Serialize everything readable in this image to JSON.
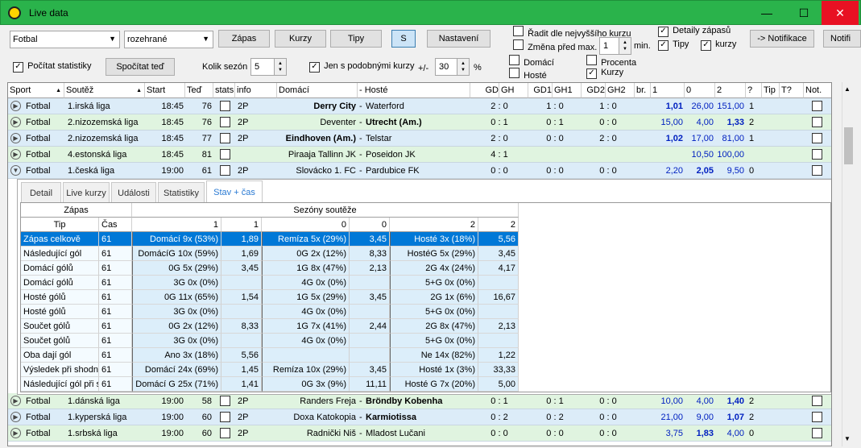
{
  "window": {
    "title": "Live data",
    "minimize": "—",
    "maximize": "☐",
    "close": "✕"
  },
  "toolbar": {
    "sport_combo": "Fotbal",
    "filter_combo": "rozehrané",
    "btn_zapas": "Zápas",
    "btn_kurzy": "Kurzy",
    "btn_tipy": "Tipy",
    "btn_s": "S",
    "btn_nastaveni": "Nastavení",
    "radit_label": "Řadit dle nejvyššího kurzu",
    "zmena_label": "Změna před max.",
    "zmena_value": "1",
    "min_label": "min.",
    "detaily_label": "Detaily zápasů",
    "tipy_label": "Tipy",
    "kurzy_label": "kurzy",
    "notifikace_btn": "-> Notifikace",
    "notifi_btn": "Notifi",
    "pocitat_label": "Počítat statistiky",
    "spocitat_btn": "Spočítat teď",
    "kolik_label": "Kolik sezón",
    "kolik_value": "5",
    "jen_label": "Jen s podobnými kurzy",
    "plusminus_label": "+/-",
    "pct_value": "30",
    "pct_label": "%",
    "domaci_label": "Domácí",
    "hoste_label": "Hosté",
    "procenta_label": "Procenta",
    "kurzy2_label": "Kurzy"
  },
  "columns": [
    "Sport",
    "Soutěž",
    "Start",
    "Teď",
    "stats",
    "info",
    "Domácí",
    "- Hosté",
    "GD",
    "GH",
    "GD1",
    "GH1",
    "GD2",
    "GH2",
    "br.",
    "1",
    "0",
    "2",
    "?",
    "Tip",
    "T?",
    "Not."
  ],
  "rows_top": [
    {
      "sport": "Fotbal",
      "league": "1.irská liga",
      "start": "18:45",
      "now": "76",
      "info": "2P",
      "home": "Derry City",
      "away": "Waterford",
      "gd": "2 : 0",
      "gd1": "1 : 0",
      "gd2": "1 : 0",
      "o1": "1,01",
      "o0": "26,00",
      "o2": "151,00",
      "q": "1",
      "home_bold": true,
      "away_bold": false,
      "hl": "o1",
      "expanded": false,
      "bg": "#dcecf8"
    },
    {
      "sport": "Fotbal",
      "league": "2.nizozemská liga",
      "start": "18:45",
      "now": "76",
      "info": "2P",
      "home": "Deventer",
      "away": "Utrecht (Am.)",
      "gd": "0 : 1",
      "gd1": "0 : 1",
      "gd2": "0 : 0",
      "o1": "15,00",
      "o0": "4,00",
      "o2": "1,33",
      "q": "2",
      "home_bold": false,
      "away_bold": true,
      "hl": "o2",
      "expanded": false,
      "bg": "#e0f4e0"
    },
    {
      "sport": "Fotbal",
      "league": "2.nizozemská liga",
      "start": "18:45",
      "now": "77",
      "info": "2P",
      "home": "Eindhoven (Am.)",
      "away": "Telstar",
      "gd": "2 : 0",
      "gd1": "0 : 0",
      "gd2": "2 : 0",
      "o1": "1,02",
      "o0": "17,00",
      "o2": "81,00",
      "q": "1",
      "home_bold": true,
      "away_bold": false,
      "hl": "o1",
      "expanded": false,
      "bg": "#dcecf8"
    },
    {
      "sport": "Fotbal",
      "league": "4.estonská liga",
      "start": "18:45",
      "now": "81",
      "info": "",
      "home": "Piraaja Tallinn JK",
      "away": "Poseidon JK",
      "gd": "4 : 1",
      "gd1": "",
      "gd2": "",
      "o1": "",
      "o0": "10,50",
      "o2": "100,00",
      "q": "",
      "home_bold": false,
      "away_bold": false,
      "hl": "",
      "expanded": false,
      "bg": "#e0f4e0"
    },
    {
      "sport": "Fotbal",
      "league": "1.česká liga",
      "start": "19:00",
      "now": "61",
      "info": "2P",
      "home": "Slovácko 1. FC",
      "away": "Pardubice FK",
      "gd": "0 : 0",
      "gd1": "0 : 0",
      "gd2": "0 : 0",
      "o1": "2,20",
      "o0": "2,05",
      "o2": "9,50",
      "q": "0",
      "home_bold": false,
      "away_bold": false,
      "hl": "o0",
      "expanded": true,
      "bg": "#dcecf8"
    }
  ],
  "rows_bottom": [
    {
      "sport": "Fotbal",
      "league": "1.dánská liga",
      "start": "19:00",
      "now": "58",
      "info": "2P",
      "home": "Randers Freja",
      "away": "Bröndby Kobenha",
      "gd": "0 : 1",
      "gd1": "0 : 1",
      "gd2": "0 : 0",
      "o1": "10,00",
      "o0": "4,00",
      "o2": "1,40",
      "q": "2",
      "home_bold": false,
      "away_bold": true,
      "hl": "o2",
      "expanded": false,
      "bg": "#e0f4e0"
    },
    {
      "sport": "Fotbal",
      "league": "1.kyperská liga",
      "start": "19:00",
      "now": "60",
      "info": "2P",
      "home": "Doxa Katokopia",
      "away": "Karmiotissa",
      "gd": "0 : 2",
      "gd1": "0 : 2",
      "gd2": "0 : 0",
      "o1": "21,00",
      "o0": "9,00",
      "o2": "1,07",
      "q": "2",
      "home_bold": false,
      "away_bold": true,
      "hl": "o2",
      "expanded": false,
      "bg": "#dcecf8"
    },
    {
      "sport": "Fotbal",
      "league": "1.srbská liga",
      "start": "19:00",
      "now": "60",
      "info": "2P",
      "home": "Radnički Niš",
      "away": "Mladost Lučani",
      "gd": "0 : 0",
      "gd1": "0 : 0",
      "gd2": "0 : 0",
      "o1": "3,75",
      "o0": "1,83",
      "o2": "4,00",
      "q": "0",
      "home_bold": false,
      "away_bold": false,
      "hl": "o0",
      "expanded": false,
      "bg": "#e0f4e0"
    }
  ],
  "tabs": [
    "Detail",
    "Live kurzy",
    "Události",
    "Statistiky",
    "Stav + čas"
  ],
  "active_tab": 4,
  "sub": {
    "group_zapas": "Zápas",
    "group_sezony": "Sezóny soutěže",
    "col_tip": "Tip",
    "col_cas": "Čas",
    "col_heads": [
      "1",
      "1",
      "0",
      "0",
      "2",
      "2"
    ],
    "rows": [
      {
        "tip": "Zápas celkově",
        "cas": "61",
        "c1": "Domácí 9x (53%)",
        "c2": "1,89",
        "c3": "Remíza 5x (29%)",
        "c4": "3,45",
        "c5": "Hosté 3x (18%)",
        "c6": "5,56",
        "selected": true
      },
      {
        "tip": "Následující gól",
        "cas": "61",
        "c1": "DomácíG 10x (59%)",
        "c2": "1,69",
        "c3": "0G 2x (12%)",
        "c4": "8,33",
        "c5": "HostéG 5x (29%)",
        "c6": "3,45"
      },
      {
        "tip": "Domácí gólů",
        "cas": "61",
        "c1": "0G 5x (29%)",
        "c2": "3,45",
        "c3": "1G 8x (47%)",
        "c4": "2,13",
        "c5": "2G 4x (24%)",
        "c6": "4,17"
      },
      {
        "tip": "Domácí gólů",
        "cas": "61",
        "c1": "3G 0x (0%)",
        "c2": "",
        "c3": "4G 0x (0%)",
        "c4": "",
        "c5": "5+G 0x (0%)",
        "c6": ""
      },
      {
        "tip": "Hosté gólů",
        "cas": "61",
        "c1": "0G 11x (65%)",
        "c2": "1,54",
        "c3": "1G 5x (29%)",
        "c4": "3,45",
        "c5": "2G 1x (6%)",
        "c6": "16,67"
      },
      {
        "tip": "Hosté gólů",
        "cas": "61",
        "c1": "3G 0x (0%)",
        "c2": "",
        "c3": "4G 0x (0%)",
        "c4": "",
        "c5": "5+G 0x (0%)",
        "c6": ""
      },
      {
        "tip": "Součet gólů",
        "cas": "61",
        "c1": "0G 2x (12%)",
        "c2": "8,33",
        "c3": "1G 7x (41%)",
        "c4": "2,44",
        "c5": "2G 8x (47%)",
        "c6": "2,13"
      },
      {
        "tip": "Součet gólů",
        "cas": "61",
        "c1": "3G 0x (0%)",
        "c2": "",
        "c3": "4G 0x (0%)",
        "c4": "",
        "c5": "5+G 0x (0%)",
        "c6": ""
      },
      {
        "tip": "Oba dají gól",
        "cas": "61",
        "c1": "Ano 3x (18%)",
        "c2": "5,56",
        "c3": "",
        "c4": "",
        "c5": "Ne 14x (82%)",
        "c6": "1,22"
      },
      {
        "tip": "Výsledek při shodné",
        "cas": "61",
        "c1": "Domácí 24x (69%)",
        "c2": "1,45",
        "c3": "Remíza 10x (29%)",
        "c4": "3,45",
        "c5": "Hosté 1x (3%)",
        "c6": "33,33"
      },
      {
        "tip": "Následující gól při sh",
        "cas": "61",
        "c1": "Domácí G 25x (71%)",
        "c2": "1,41",
        "c3": "0G 3x (9%)",
        "c4": "11,11",
        "c5": "Hosté G 7x (20%)",
        "c6": "5,00"
      }
    ]
  },
  "colors": {
    "title_bar": "#2ab34b",
    "row_blue": "#dcecf8",
    "row_green": "#e0f4e0",
    "odds_highlight": "#0020c0",
    "selected": "#0078d7"
  }
}
